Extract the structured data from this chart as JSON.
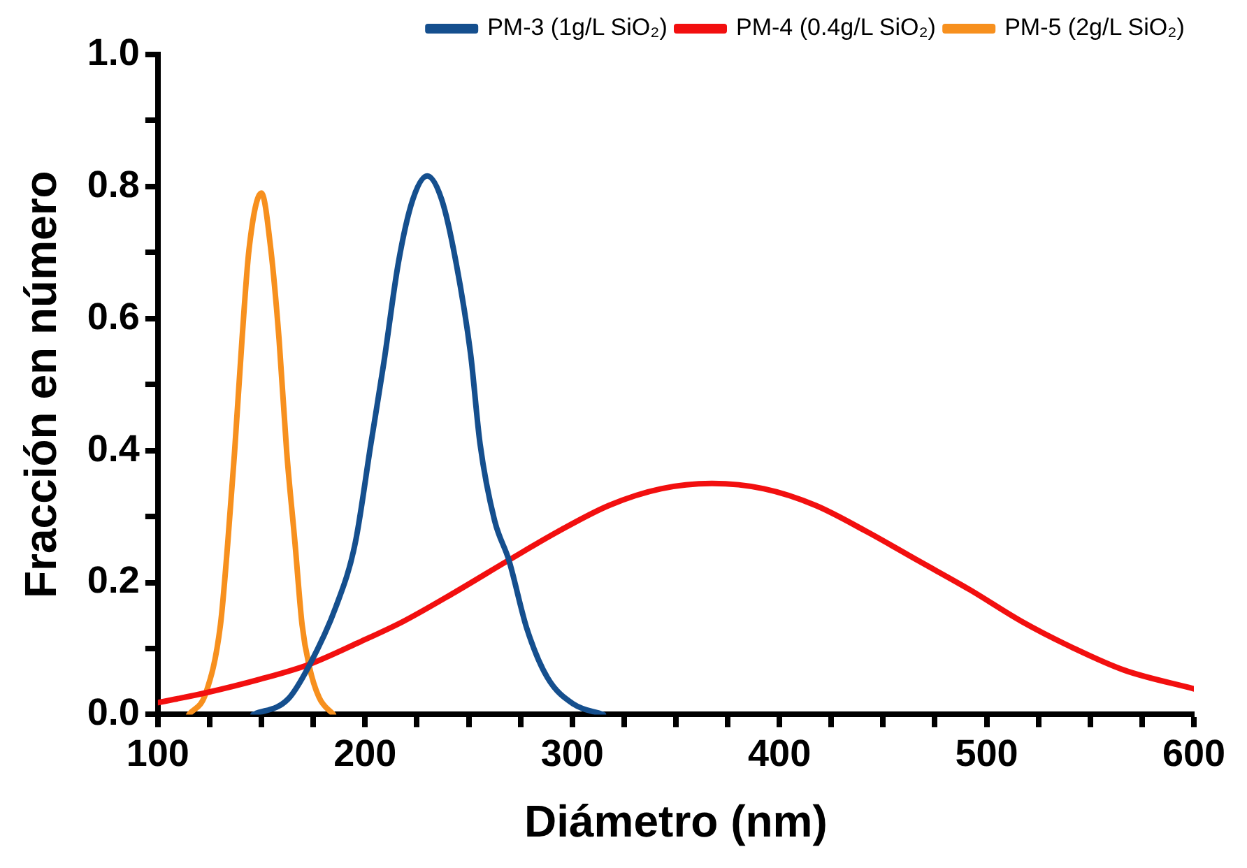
{
  "chart_data": {
    "type": "line",
    "xlabel": "Diámetro (nm)",
    "ylabel": "Fracción en número",
    "xlim": [
      100,
      600
    ],
    "ylim": [
      0,
      1.0
    ],
    "xticks": [
      100,
      {
        "value": 125,
        "label": null
      },
      {
        "value": 150,
        "label": null
      },
      {
        "value": 175,
        "label": null
      },
      200,
      {
        "value": 225,
        "label": null
      },
      {
        "value": 250,
        "label": null
      },
      {
        "value": 275,
        "label": null
      },
      300,
      {
        "value": 325,
        "label": null
      },
      {
        "value": 350,
        "label": null
      },
      {
        "value": 375,
        "label": null
      },
      400,
      {
        "value": 425,
        "label": null
      },
      {
        "value": 450,
        "label": null
      },
      {
        "value": 475,
        "label": null
      },
      500,
      {
        "value": 525,
        "label": null
      },
      {
        "value": 550,
        "label": null
      },
      {
        "value": 575,
        "label": null
      },
      600
    ],
    "yticks": [
      {
        "value": 0,
        "label": "0.0"
      },
      {
        "value": 0.1,
        "label": null
      },
      0.2,
      {
        "value": 0.3,
        "label": null
      },
      0.4,
      {
        "value": 0.5,
        "label": null
      },
      0.6,
      {
        "value": 0.7,
        "label": null
      },
      0.8,
      {
        "value": 0.9,
        "label": null
      },
      {
        "value": 1.0,
        "label": "1.0"
      }
    ],
    "grid": false,
    "legend": "top right",
    "marker": "none",
    "line_style": "solid",
    "series": [
      {
        "name": "PM-3 (1g/L SiO₂)",
        "color": "#154f8e",
        "x": [
          146,
          162.7,
          173,
          185.9,
          195.2,
          202.8,
          209.1,
          216.1,
          223,
          230,
          237,
          243.9,
          250.9,
          255.5,
          262.5,
          269.4,
          278.1,
          288,
          300.5,
          315
        ],
        "values": [
          0,
          0.023,
          0.074,
          0.163,
          0.259,
          0.41,
          0.534,
          0.685,
          0.78,
          0.816,
          0.78,
          0.685,
          0.547,
          0.41,
          0.294,
          0.234,
          0.13,
          0.056,
          0.016,
          0
        ]
      },
      {
        "name": "PM-4 (0.4g/L SiO₂)",
        "color": "#f20f0f",
        "x": [
          100,
          123.2,
          148.7,
          173,
          197.5,
          218.4,
          243.2,
          269.4,
          293,
          317.9,
          342.8,
          367.6,
          392.5,
          417.3,
          442.2,
          467,
          491.9,
          516.9,
          541.7,
          566.6,
          600
        ],
        "values": [
          0.018,
          0.033,
          0.053,
          0.076,
          0.11,
          0.141,
          0.185,
          0.234,
          0.277,
          0.317,
          0.342,
          0.35,
          0.342,
          0.317,
          0.277,
          0.233,
          0.189,
          0.141,
          0.101,
          0.067,
          0.039
        ]
      },
      {
        "name": "PM-5 (2g/L SiO₂)",
        "color": "#f7901e",
        "x": [
          115,
          123.2,
          130.2,
          133.7,
          137,
          140.6,
          144,
          150,
          154.5,
          158.5,
          162.2,
          166.2,
          169.6,
          173,
          177.8,
          184.7
        ],
        "values": [
          0,
          0.033,
          0.136,
          0.259,
          0.397,
          0.568,
          0.705,
          0.79,
          0.705,
          0.568,
          0.397,
          0.259,
          0.136,
          0.074,
          0.026,
          0
        ]
      }
    ]
  }
}
